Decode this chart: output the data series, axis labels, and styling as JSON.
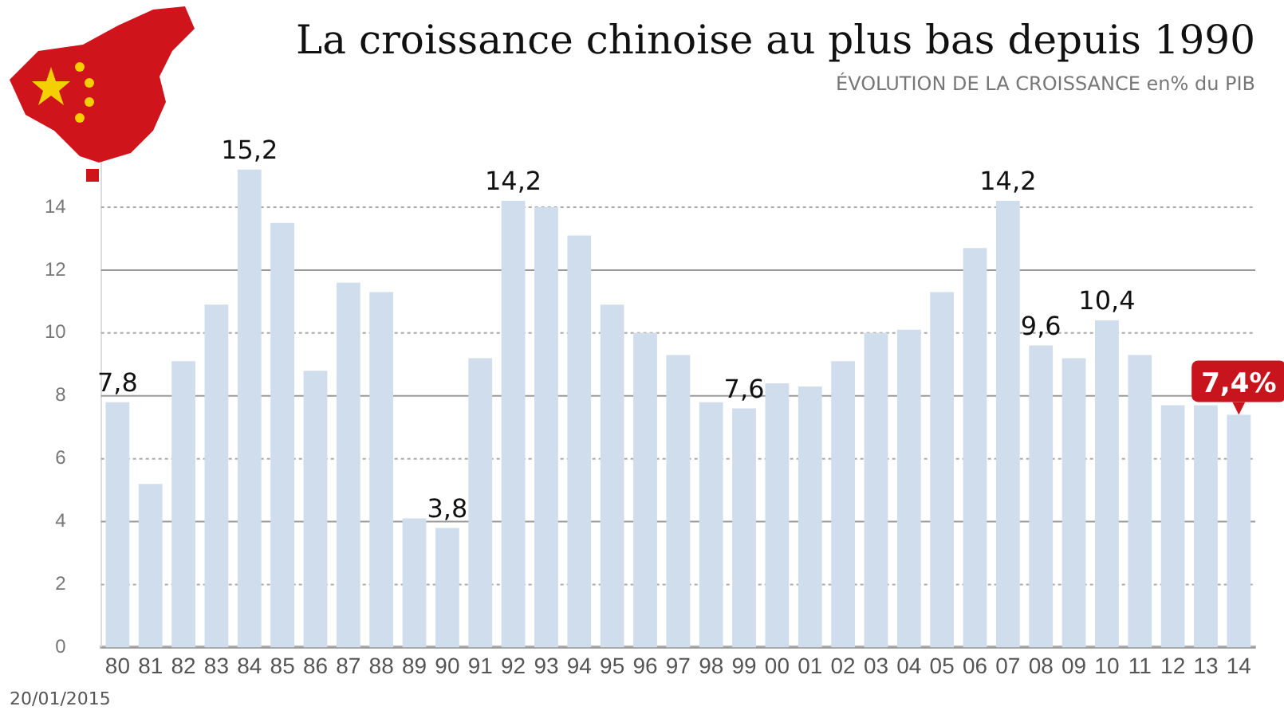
{
  "chart_data": {
    "type": "bar",
    "title": "La croissance chinoise au plus bas depuis 1990",
    "subtitle": "ÉVOLUTION DE LA CROISSANCE en% du PIB",
    "categories": [
      "80",
      "81",
      "82",
      "83",
      "84",
      "85",
      "86",
      "87",
      "88",
      "89",
      "90",
      "91",
      "92",
      "93",
      "94",
      "95",
      "96",
      "97",
      "98",
      "99",
      "00",
      "01",
      "02",
      "03",
      "04",
      "05",
      "06",
      "07",
      "08",
      "09",
      "10",
      "11",
      "12",
      "13",
      "14"
    ],
    "values": [
      7.8,
      5.2,
      9.1,
      10.9,
      15.2,
      13.5,
      8.8,
      11.6,
      11.3,
      4.1,
      3.8,
      9.2,
      14.2,
      14.0,
      13.1,
      10.9,
      10.0,
      9.3,
      7.8,
      7.6,
      8.4,
      8.3,
      9.1,
      10.0,
      10.1,
      11.3,
      12.7,
      14.2,
      9.6,
      9.2,
      10.4,
      9.3,
      7.7,
      7.7,
      7.4
    ],
    "value_labels": [
      "7,8",
      null,
      null,
      null,
      "15,2",
      null,
      null,
      null,
      null,
      null,
      "3,8",
      null,
      "14,2",
      null,
      null,
      null,
      null,
      null,
      null,
      "7,6",
      null,
      null,
      null,
      null,
      null,
      null,
      null,
      "14,2",
      "9,6",
      null,
      "10,4",
      null,
      null,
      null,
      "7,4%"
    ],
    "color": "#d0ddec",
    "ylim": [
      0,
      15.5
    ],
    "yticks": [
      0,
      2,
      4,
      6,
      8,
      10,
      12,
      14
    ],
    "grid": "y",
    "legend": false,
    "annotations": [
      "20/01/2015"
    ]
  }
}
